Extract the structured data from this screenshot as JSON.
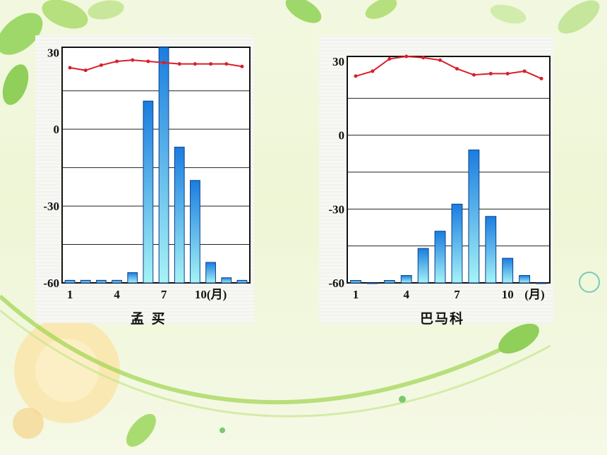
{
  "chart_data": [
    {
      "type": "bar",
      "caption": "孟  买",
      "x_ticks": [
        "1",
        "4",
        "7",
        "10(月)"
      ],
      "x_tick_months": [
        1,
        4,
        7,
        10
      ],
      "y_ticks": [
        "30",
        "0",
        "-30",
        "-60"
      ],
      "y_tick_values": [
        30,
        0,
        -30,
        -60
      ],
      "ylim": [
        -60,
        32
      ],
      "gridlines": [
        15,
        0,
        -15,
        -30,
        -45
      ],
      "categories": [
        1,
        2,
        3,
        4,
        5,
        6,
        7,
        8,
        9,
        10,
        11,
        12
      ],
      "series": [
        {
          "kind": "bar",
          "values": [
            -59,
            -59,
            -59,
            -59,
            -56,
            11,
            32,
            -7,
            -20,
            -52,
            -58,
            -59
          ]
        },
        {
          "kind": "line",
          "values": [
            24,
            23,
            25,
            26.5,
            27,
            26.5,
            26,
            25.5,
            25.5,
            25.5,
            25.5,
            24.5
          ]
        }
      ],
      "colors": {
        "bar_top": "#1a7de0",
        "bar_bottom": "#a6f3f6",
        "line": "#d91f2a"
      }
    },
    {
      "type": "bar",
      "caption": "巴马科",
      "x_ticks": [
        "1",
        "4",
        "7",
        "10",
        "(月)"
      ],
      "x_tick_months": [
        1,
        4,
        7,
        10,
        11.6
      ],
      "y_ticks": [
        "30",
        "0",
        "-30",
        "-60"
      ],
      "y_tick_values": [
        30,
        0,
        -30,
        -60
      ],
      "ylim": [
        -60,
        32
      ],
      "gridlines": [
        15,
        0,
        -15,
        -30,
        -45
      ],
      "categories": [
        1,
        2,
        3,
        4,
        5,
        6,
        7,
        8,
        9,
        10,
        11,
        12
      ],
      "series": [
        {
          "kind": "bar",
          "values": [
            -59,
            -60,
            -59,
            -57,
            -46,
            -39,
            -28,
            -6,
            -33,
            -50,
            -57,
            -60
          ]
        },
        {
          "kind": "line",
          "values": [
            24,
            26,
            31,
            32,
            31.5,
            30.5,
            27,
            24.5,
            25,
            25,
            26,
            23
          ]
        }
      ],
      "colors": {
        "bar_top": "#1a7de0",
        "bar_bottom": "#a6f3f6",
        "line": "#d91f2a"
      }
    }
  ]
}
